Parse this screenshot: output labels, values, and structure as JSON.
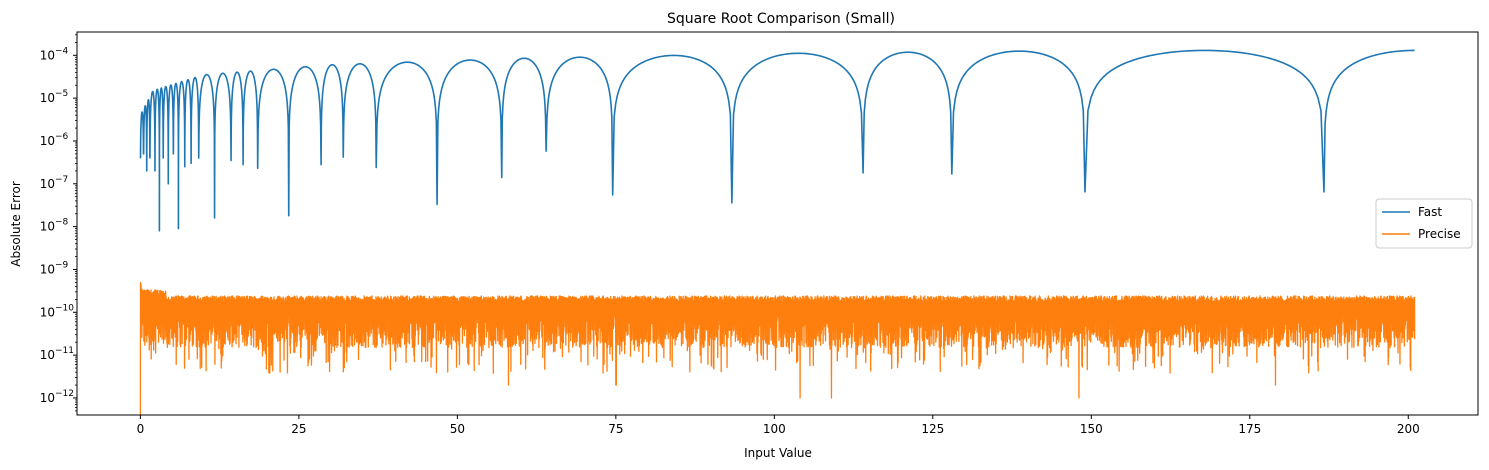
{
  "chart_data": {
    "type": "line",
    "title": "Square Root Comparison (Small)",
    "xlabel": "Input Value",
    "ylabel": "Absolute Error",
    "yscale": "log",
    "xlim": [
      -10,
      211
    ],
    "ylim": [
      4e-13,
      0.00035
    ],
    "grid": false,
    "legend": {
      "position": "center-right"
    },
    "x_ticks": [
      0,
      25,
      50,
      75,
      100,
      125,
      150,
      175,
      200
    ],
    "x_tick_labels": [
      "0",
      "25",
      "50",
      "75",
      "100",
      "125",
      "150",
      "175",
      "200"
    ],
    "y_ticks": [
      1e-12,
      1e-11,
      1e-10,
      1e-09,
      1e-08,
      1e-07,
      1e-06,
      1e-05,
      0.0001
    ],
    "y_tick_labels": [
      "10",
      "10",
      "10",
      "10",
      "10",
      "10",
      "10",
      "10",
      "10"
    ],
    "y_tick_exponents": [
      "−12",
      "−11",
      "−10",
      "−9",
      "−8",
      "−7",
      "−6",
      "−5",
      "−4"
    ],
    "series": [
      {
        "name": "Fast",
        "color": "#1f77b4",
        "x_range": [
          0,
          201
        ],
        "envelope": [
          [
            0,
            4e-06
          ],
          [
            2,
            1.5e-05
          ],
          [
            10,
            3.5e-05
          ],
          [
            30,
            6e-05
          ],
          [
            60,
            8.5e-05
          ],
          [
            100,
            0.00011
          ],
          [
            150,
            0.00013
          ],
          [
            201,
            0.00013
          ]
        ],
        "dips": [
          {
            "x": 0.5,
            "y": 5e-07
          },
          {
            "x": 1.0,
            "y": 2e-07
          },
          {
            "x": 1.5,
            "y": 4e-07
          },
          {
            "x": 2.3,
            "y": 2e-07
          },
          {
            "x": 3.0,
            "y": 8e-09
          },
          {
            "x": 3.6,
            "y": 4e-07
          },
          {
            "x": 4.4,
            "y": 1e-07
          },
          {
            "x": 5.2,
            "y": 5e-07
          },
          {
            "x": 6.0,
            "y": 9e-09
          },
          {
            "x": 7.0,
            "y": 2.5e-07
          },
          {
            "x": 8.0,
            "y": 3e-07
          },
          {
            "x": 9.2,
            "y": 4e-07
          },
          {
            "x": 11.7,
            "y": 1.6e-08
          },
          {
            "x": 14.3,
            "y": 3.5e-07
          },
          {
            "x": 16.2,
            "y": 2.8e-07
          },
          {
            "x": 18.5,
            "y": 2.3e-07
          },
          {
            "x": 23.4,
            "y": 1.8e-08
          },
          {
            "x": 28.5,
            "y": 2.8e-07
          },
          {
            "x": 32.0,
            "y": 4.2e-07
          },
          {
            "x": 37.2,
            "y": 2.4e-07
          },
          {
            "x": 46.8,
            "y": 3.3e-08
          },
          {
            "x": 57.0,
            "y": 1.4e-07
          },
          {
            "x": 64.0,
            "y": 5.8e-07
          },
          {
            "x": 74.5,
            "y": 5.5e-08
          },
          {
            "x": 93.3,
            "y": 3.6e-08
          },
          {
            "x": 114.0,
            "y": 1.8e-07
          },
          {
            "x": 128.0,
            "y": 1.7e-07
          },
          {
            "x": 149.0,
            "y": 6.5e-08
          },
          {
            "x": 186.7,
            "y": 6.5e-08
          }
        ]
      },
      {
        "name": "Precise",
        "color": "#ff7f0e",
        "x_range": [
          0,
          201
        ],
        "band_top": 2.3e-10,
        "band_floor": 3e-12,
        "start_spike": 5e-10,
        "deep_dips": [
          {
            "x": 0.0,
            "y": 4e-13
          },
          {
            "x": 22.0,
            "y": 4e-12
          },
          {
            "x": 58.0,
            "y": 2e-12
          },
          {
            "x": 75.0,
            "y": 2e-12
          },
          {
            "x": 104.0,
            "y": 1e-12
          },
          {
            "x": 109.0,
            "y": 1e-12
          },
          {
            "x": 148.0,
            "y": 1e-12
          },
          {
            "x": 179.0,
            "y": 2e-12
          }
        ]
      }
    ]
  }
}
